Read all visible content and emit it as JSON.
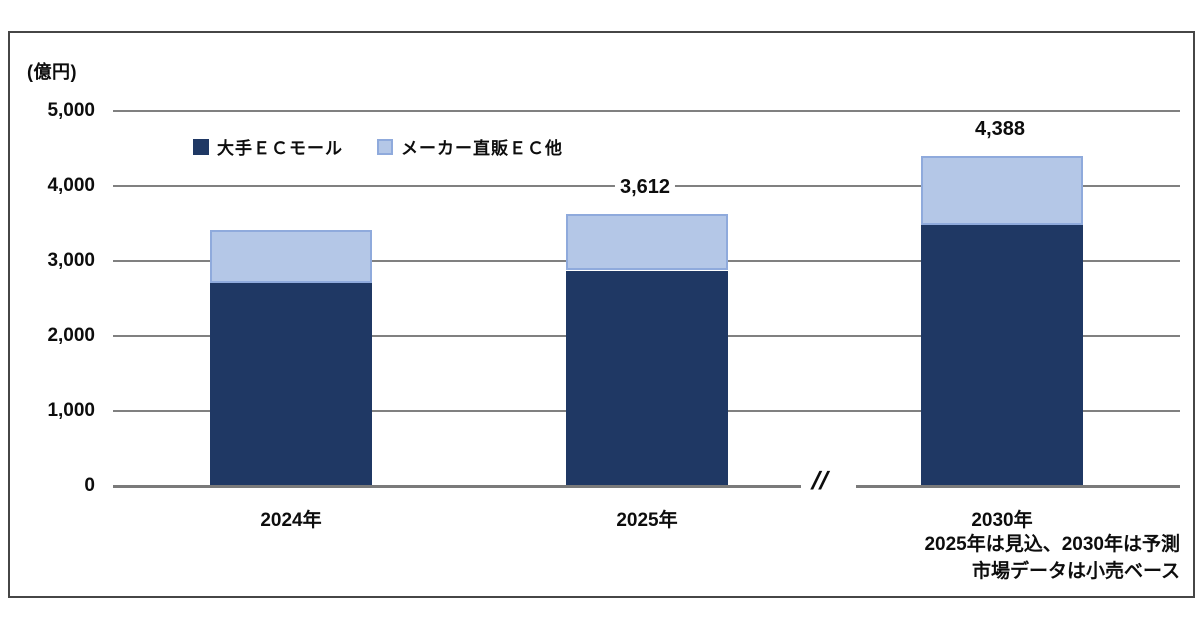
{
  "chart_data": {
    "type": "bar",
    "stacked": true,
    "unit_label": "(億円)",
    "categories": [
      "2024年",
      "2025年",
      "2030年"
    ],
    "series": [
      {
        "name": "大手ＥＣモール",
        "color": "#1F3864",
        "values": [
          2690,
          2860,
          3470
        ]
      },
      {
        "name": "メーカー直販ＥＣ他",
        "color": "#B4C7E7",
        "values": [
          710,
          752,
          918
        ]
      }
    ],
    "totals": [
      3400,
      3612,
      4388
    ],
    "total_labels": [
      "",
      "3,612",
      "4,388"
    ],
    "ylim": [
      0,
      5000
    ],
    "ytick_values": [
      0,
      1000,
      2000,
      3000,
      4000,
      5000
    ],
    "ytick_labels": [
      "0",
      "1,000",
      "2,000",
      "3,000",
      "4,000",
      "5,000"
    ],
    "grid": true,
    "legend_position": "top-inside",
    "axis_break": {
      "between": [
        "2025年",
        "2030年"
      ],
      "symbol": "//"
    },
    "notes": [
      "2025年は見込、2030年は予測",
      "市場データは小売ベース"
    ]
  },
  "colors": {
    "series_dark": "#1F3864",
    "series_light_fill": "#B4C7E7",
    "series_light_border": "#8FAADC",
    "gridline": "#808080",
    "frame_border": "#464646",
    "text": "#0d0d0d"
  }
}
